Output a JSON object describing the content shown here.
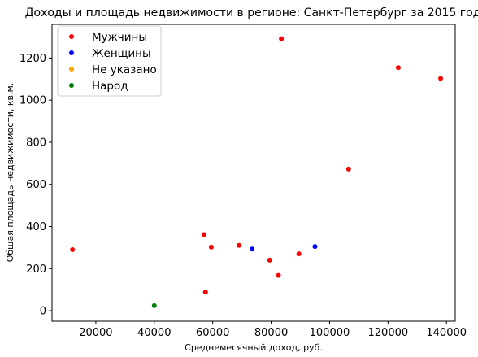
{
  "chart_data": {
    "type": "scatter",
    "title": "Доходы и площадь недвижимости в регионе: Санкт-Петербург за 2015 год",
    "xlabel": "Среднемесячный доход, руб.",
    "ylabel": "Общая площадь недвижимости, кв.м.",
    "xlim": [
      5000,
      143000
    ],
    "ylim": [
      -50,
      1360
    ],
    "xticks": [
      20000,
      40000,
      60000,
      80000,
      100000,
      120000,
      140000
    ],
    "yticks": [
      0,
      200,
      400,
      600,
      800,
      1000,
      1200
    ],
    "grid": false,
    "legend_position": "top-left",
    "series": [
      {
        "name": "Мужчины",
        "color": "#ff0000",
        "points": [
          {
            "x": 12000,
            "y": 290
          },
          {
            "x": 57000,
            "y": 362
          },
          {
            "x": 57500,
            "y": 88
          },
          {
            "x": 59500,
            "y": 302
          },
          {
            "x": 69000,
            "y": 310
          },
          {
            "x": 79500,
            "y": 240
          },
          {
            "x": 82500,
            "y": 168
          },
          {
            "x": 83500,
            "y": 1292
          },
          {
            "x": 89500,
            "y": 270
          },
          {
            "x": 106500,
            "y": 673
          },
          {
            "x": 123500,
            "y": 1155
          },
          {
            "x": 138000,
            "y": 1103
          }
        ]
      },
      {
        "name": "Женщины",
        "color": "#0000ff",
        "points": [
          {
            "x": 73500,
            "y": 293
          },
          {
            "x": 95000,
            "y": 305
          }
        ]
      },
      {
        "name": "Не указано",
        "color": "#ffa500",
        "points": []
      },
      {
        "name": "Народ",
        "color": "#008000",
        "points": [
          {
            "x": 40000,
            "y": 24
          }
        ]
      }
    ]
  }
}
